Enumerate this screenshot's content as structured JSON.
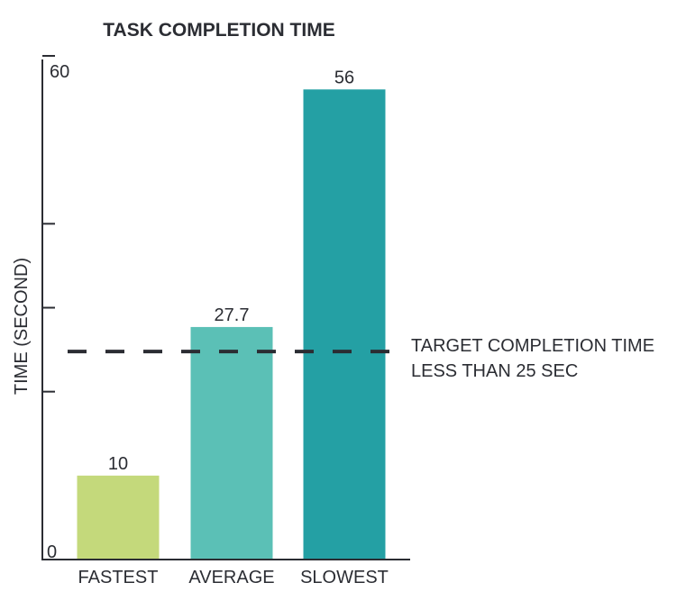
{
  "chart_data": {
    "type": "bar",
    "title": "TASK COMPLETION TIME",
    "xlabel": "",
    "ylabel": "TIME (SECOND)",
    "ylim": [
      0,
      60
    ],
    "y_tick_labels": [
      {
        "value": 60,
        "label": "60"
      },
      {
        "value": 0,
        "label": "0"
      }
    ],
    "y_ticks": [
      0,
      20,
      30,
      40,
      60
    ],
    "categories": [
      "FASTEST",
      "AVERAGE",
      "SLOWEST"
    ],
    "values": [
      10,
      27.7,
      56
    ],
    "value_labels": [
      "10",
      "27.7",
      "56"
    ],
    "colors": [
      "#c4d97b",
      "#5bc0b6",
      "#24a0a4"
    ],
    "reference_line": {
      "value": 25,
      "style": "dashed",
      "color": "#2b2d33",
      "label_lines": [
        "TARGET COMPLETION TIME",
        "LESS THAN 25 SEC"
      ]
    },
    "grid": false,
    "legend": "none"
  }
}
